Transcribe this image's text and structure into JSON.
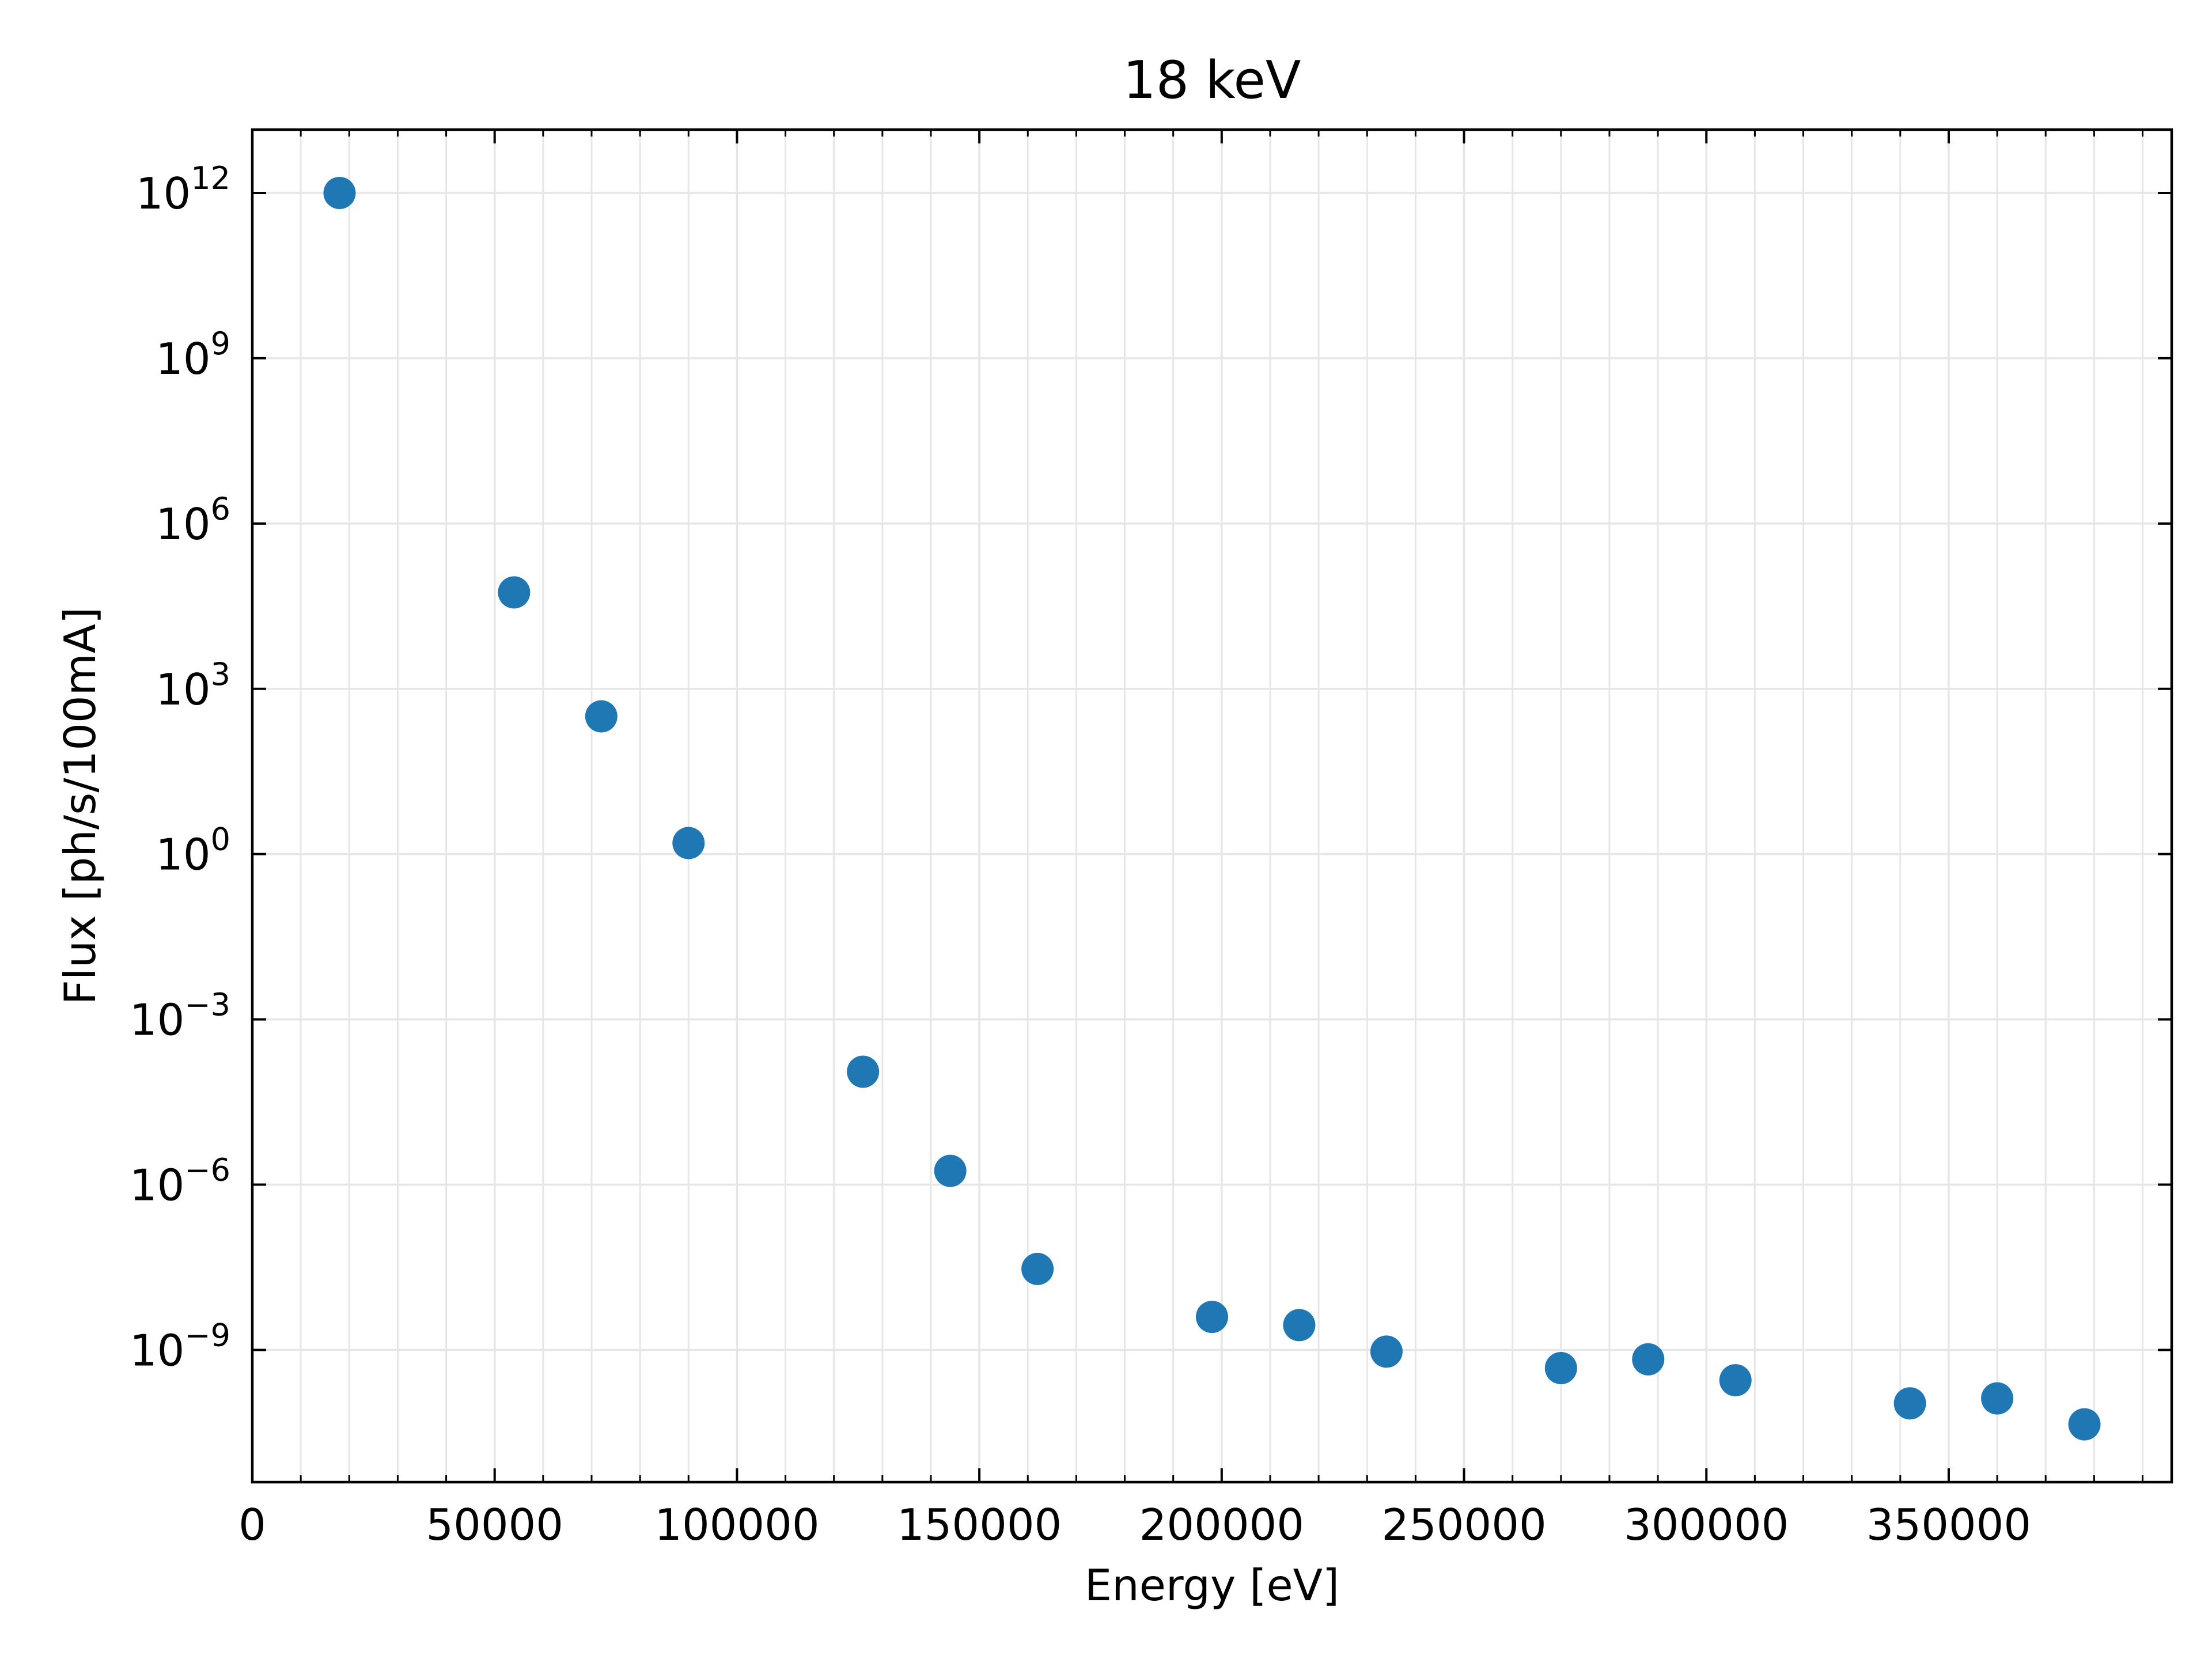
{
  "chart_data": {
    "type": "scatter",
    "title": "18 keV",
    "xlabel": "Energy [eV]",
    "ylabel": "Flux [ph/s/100mA]",
    "xlim": [
      0,
      396000
    ],
    "ylim_log10": [
      -11.4,
      13.15
    ],
    "yscale": "log",
    "grid": true,
    "marker_color": "#1f77b4",
    "x_ticks": [
      0,
      50000,
      100000,
      150000,
      200000,
      250000,
      300000,
      350000
    ],
    "x_tick_labels": [
      "0",
      "50000",
      "100000",
      "150000",
      "200000",
      "250000",
      "300000",
      "350000"
    ],
    "y_tick_exponents": [
      12,
      9,
      6,
      3,
      0,
      -3,
      -6,
      -9
    ],
    "y_tick_labels": [
      {
        "base": "10",
        "exp": "12"
      },
      {
        "base": "10",
        "exp": "9"
      },
      {
        "base": "10",
        "exp": "6"
      },
      {
        "base": "10",
        "exp": "3"
      },
      {
        "base": "10",
        "exp": "0"
      },
      {
        "base": "10",
        "exp": "−3"
      },
      {
        "base": "10",
        "exp": "−6"
      },
      {
        "base": "10",
        "exp": "−9"
      }
    ],
    "series": [
      {
        "x": [
          18000,
          54000,
          72000,
          90000,
          126000,
          144000,
          162000,
          198000,
          216000,
          234000,
          270000,
          288000,
          306000,
          342000,
          360000,
          378000
        ],
        "y_log10": [
          12.0,
          4.75,
          2.5,
          0.2,
          -3.95,
          -5.75,
          -7.53,
          -8.4,
          -8.55,
          -9.03,
          -9.33,
          -9.17,
          -9.55,
          -9.97,
          -9.88,
          -10.35
        ]
      }
    ]
  }
}
